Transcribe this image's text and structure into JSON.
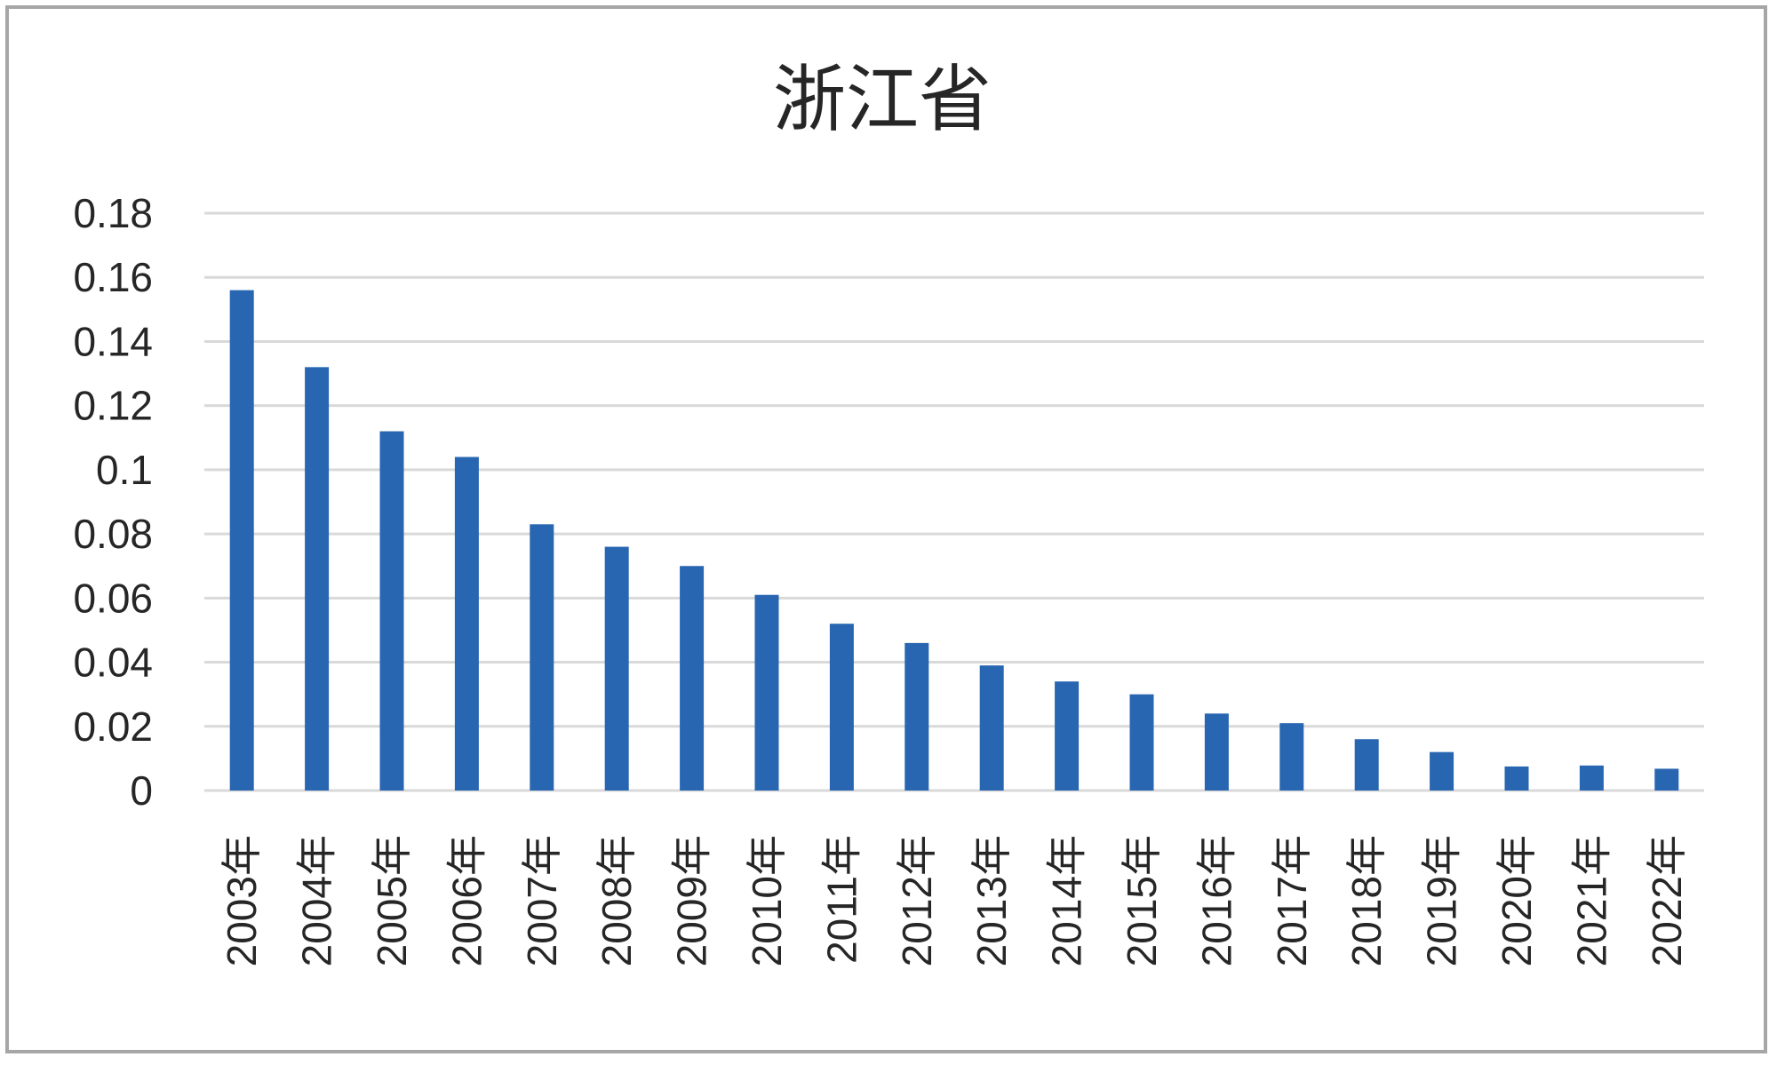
{
  "chart_data": {
    "type": "bar",
    "title": "浙江省",
    "xlabel": "",
    "ylabel": "",
    "categories": [
      "2003年",
      "2004年",
      "2005年",
      "2006年",
      "2007年",
      "2008年",
      "2009年",
      "2010年",
      "2011年",
      "2012年",
      "2013年",
      "2014年",
      "2015年",
      "2016年",
      "2017年",
      "2018年",
      "2019年",
      "2020年",
      "2021年",
      "2022年"
    ],
    "values": [
      0.156,
      0.132,
      0.112,
      0.104,
      0.083,
      0.076,
      0.07,
      0.061,
      0.052,
      0.046,
      0.039,
      0.034,
      0.03,
      0.024,
      0.021,
      0.016,
      0.012,
      0.0075,
      0.0078,
      0.0068
    ],
    "ylim": [
      0,
      0.18
    ],
    "y_ticks": [
      "0",
      "0.02",
      "0.04",
      "0.06",
      "0.08",
      "0.1",
      "0.12",
      "0.14",
      "0.16",
      "0.18"
    ],
    "y_tick_values": [
      0,
      0.02,
      0.04,
      0.06,
      0.08,
      0.1,
      0.12,
      0.14,
      0.16,
      0.18
    ],
    "grid": true,
    "legend": "none",
    "bar_color": "#2866b1",
    "grid_color": "#d9d9d9"
  }
}
